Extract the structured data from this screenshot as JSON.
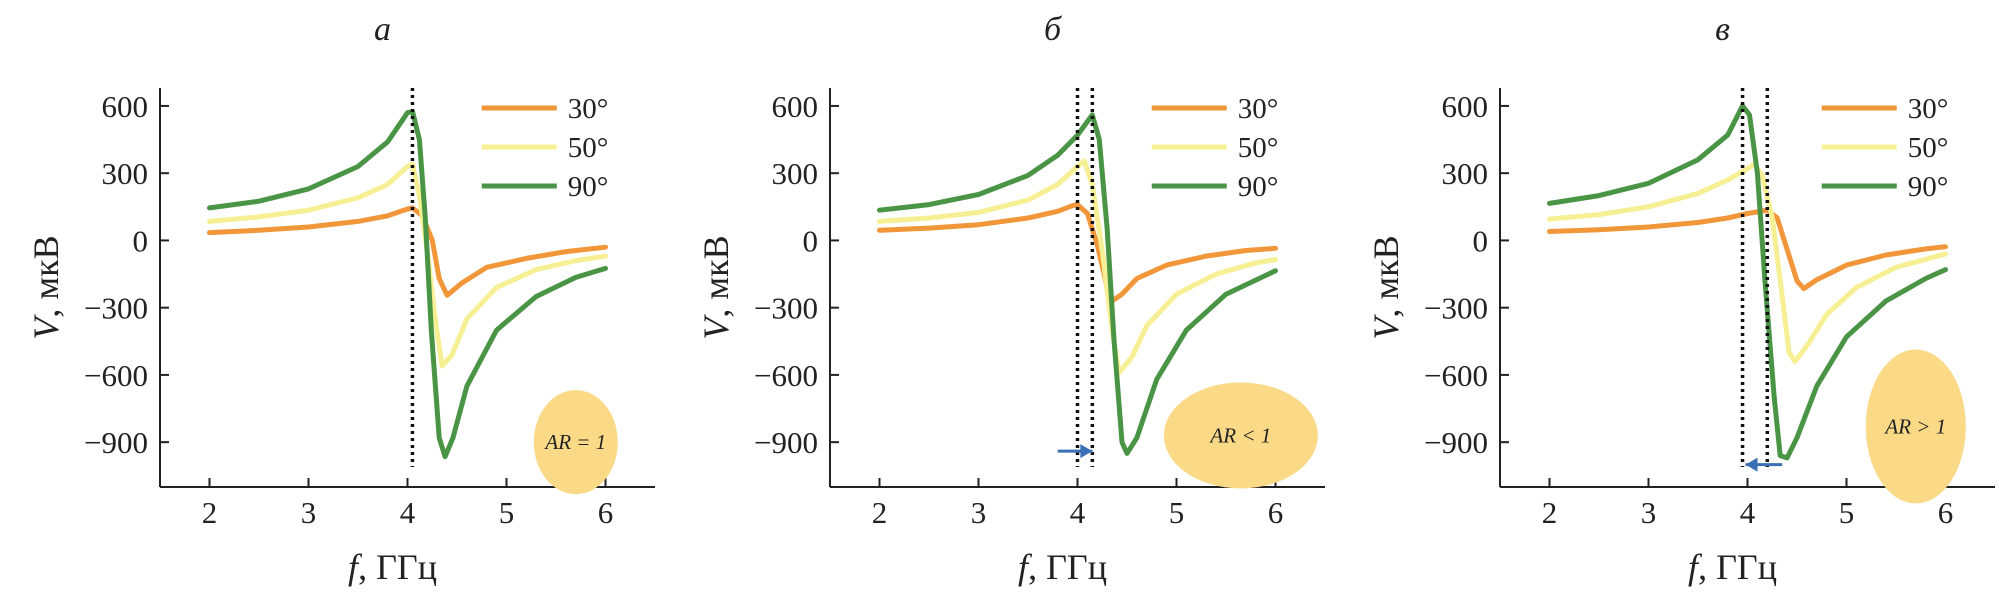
{
  "figure": {
    "colors": {
      "axis": "#222222",
      "arrow": "#3a6fb5",
      "shape": "#fad987",
      "marker": "#111111"
    }
  },
  "chart_data": [
    {
      "type": "line",
      "panel_letter": "а",
      "xlabel_var": "f",
      "xlabel_unit": ", ГГц",
      "ylabel_var": "V",
      "ylabel_unit": ", мкВ",
      "xlim": [
        1.5,
        6.5
      ],
      "ylim": [
        -1100,
        680
      ],
      "xticks": [
        2,
        3,
        4,
        5,
        6
      ],
      "yticks": [
        600,
        300,
        0,
        -300,
        -600,
        -900
      ],
      "grid": false,
      "legend_position": "top-right",
      "markers": [
        4.05
      ],
      "arrow": null,
      "shape": {
        "kind": "circle",
        "label": "AR = 1"
      },
      "series": [
        {
          "name": "30°",
          "color": "#f2963a",
          "points": [
            [
              2.0,
              35
            ],
            [
              2.5,
              45
            ],
            [
              3.0,
              60
            ],
            [
              3.5,
              85
            ],
            [
              3.8,
              110
            ],
            [
              4.0,
              140
            ],
            [
              4.05,
              145
            ],
            [
              4.15,
              110
            ],
            [
              4.25,
              0
            ],
            [
              4.32,
              -170
            ],
            [
              4.4,
              -245
            ],
            [
              4.55,
              -190
            ],
            [
              4.8,
              -120
            ],
            [
              5.2,
              -80
            ],
            [
              5.6,
              -50
            ],
            [
              6.0,
              -30
            ]
          ]
        },
        {
          "name": "50°",
          "color": "#f6ef93",
          "points": [
            [
              2.0,
              85
            ],
            [
              2.5,
              105
            ],
            [
              3.0,
              135
            ],
            [
              3.5,
              190
            ],
            [
              3.8,
              250
            ],
            [
              4.0,
              330
            ],
            [
              4.05,
              340
            ],
            [
              4.12,
              200
            ],
            [
              4.2,
              -50
            ],
            [
              4.28,
              -350
            ],
            [
              4.35,
              -560
            ],
            [
              4.45,
              -510
            ],
            [
              4.6,
              -350
            ],
            [
              4.9,
              -210
            ],
            [
              5.3,
              -130
            ],
            [
              5.7,
              -90
            ],
            [
              6.0,
              -70
            ]
          ]
        },
        {
          "name": "90°",
          "color": "#4a9445",
          "points": [
            [
              2.0,
              145
            ],
            [
              2.5,
              175
            ],
            [
              3.0,
              230
            ],
            [
              3.5,
              330
            ],
            [
              3.8,
              440
            ],
            [
              4.0,
              570
            ],
            [
              4.05,
              575
            ],
            [
              4.12,
              450
            ],
            [
              4.18,
              100
            ],
            [
              4.24,
              -400
            ],
            [
              4.32,
              -880
            ],
            [
              4.38,
              -965
            ],
            [
              4.46,
              -880
            ],
            [
              4.6,
              -650
            ],
            [
              4.9,
              -400
            ],
            [
              5.3,
              -250
            ],
            [
              5.7,
              -165
            ],
            [
              6.0,
              -125
            ]
          ]
        }
      ]
    },
    {
      "type": "line",
      "panel_letter": "б",
      "xlabel_var": "f",
      "xlabel_unit": ", ГГц",
      "ylabel_var": "V",
      "ylabel_unit": ", мкВ",
      "xlim": [
        1.5,
        6.5
      ],
      "ylim": [
        -1100,
        680
      ],
      "xticks": [
        2,
        3,
        4,
        5,
        6
      ],
      "yticks": [
        600,
        300,
        0,
        -300,
        -600,
        -900
      ],
      "grid": false,
      "legend_position": "top-right",
      "markers": [
        4.0,
        4.15
      ],
      "arrow": {
        "from": 3.8,
        "to": 4.15,
        "y": -940,
        "direction": "right"
      },
      "shape": {
        "kind": "wide-ellipse",
        "label": "AR < 1"
      },
      "series": [
        {
          "name": "30°",
          "color": "#f2963a",
          "points": [
            [
              2.0,
              45
            ],
            [
              2.5,
              55
            ],
            [
              3.0,
              70
            ],
            [
              3.5,
              100
            ],
            [
              3.8,
              130
            ],
            [
              3.95,
              155
            ],
            [
              4.0,
              160
            ],
            [
              4.1,
              120
            ],
            [
              4.2,
              -20
            ],
            [
              4.3,
              -210
            ],
            [
              4.35,
              -270
            ],
            [
              4.45,
              -240
            ],
            [
              4.6,
              -170
            ],
            [
              4.9,
              -110
            ],
            [
              5.3,
              -70
            ],
            [
              5.7,
              -45
            ],
            [
              6.0,
              -35
            ]
          ]
        },
        {
          "name": "50°",
          "color": "#f6ef93",
          "points": [
            [
              2.0,
              85
            ],
            [
              2.5,
              100
            ],
            [
              3.0,
              125
            ],
            [
              3.5,
              180
            ],
            [
              3.8,
              250
            ],
            [
              4.0,
              330
            ],
            [
              4.07,
              355
            ],
            [
              4.15,
              250
            ],
            [
              4.25,
              -50
            ],
            [
              4.35,
              -400
            ],
            [
              4.42,
              -590
            ],
            [
              4.55,
              -520
            ],
            [
              4.7,
              -380
            ],
            [
              5.0,
              -240
            ],
            [
              5.4,
              -150
            ],
            [
              5.8,
              -100
            ],
            [
              6.0,
              -85
            ]
          ]
        },
        {
          "name": "90°",
          "color": "#4a9445",
          "points": [
            [
              2.0,
              135
            ],
            [
              2.5,
              160
            ],
            [
              3.0,
              205
            ],
            [
              3.5,
              290
            ],
            [
              3.8,
              380
            ],
            [
              4.0,
              470
            ],
            [
              4.15,
              560
            ],
            [
              4.22,
              450
            ],
            [
              4.3,
              50
            ],
            [
              4.37,
              -450
            ],
            [
              4.45,
              -900
            ],
            [
              4.5,
              -950
            ],
            [
              4.6,
              -880
            ],
            [
              4.8,
              -620
            ],
            [
              5.1,
              -400
            ],
            [
              5.5,
              -240
            ],
            [
              6.0,
              -135
            ]
          ]
        }
      ]
    },
    {
      "type": "line",
      "panel_letter": "в",
      "xlabel_var": "f",
      "xlabel_unit": ", ГГц",
      "ylabel_var": "V",
      "ylabel_unit": ", мкВ",
      "xlim": [
        1.5,
        6.5
      ],
      "ylim": [
        -1100,
        680
      ],
      "xticks": [
        2,
        3,
        4,
        5,
        6
      ],
      "yticks": [
        600,
        300,
        0,
        -300,
        -600,
        -900
      ],
      "grid": false,
      "legend_position": "top-right",
      "markers": [
        3.95,
        4.2
      ],
      "arrow": {
        "from": 4.35,
        "to": 3.98,
        "y": -1000,
        "direction": "left"
      },
      "shape": {
        "kind": "tall-ellipse",
        "label": "AR > 1"
      },
      "series": [
        {
          "name": "30°",
          "color": "#f2963a",
          "points": [
            [
              2.0,
              40
            ],
            [
              2.5,
              48
            ],
            [
              3.0,
              60
            ],
            [
              3.5,
              80
            ],
            [
              3.8,
              100
            ],
            [
              4.0,
              120
            ],
            [
              4.2,
              135
            ],
            [
              4.3,
              100
            ],
            [
              4.4,
              -40
            ],
            [
              4.5,
              -180
            ],
            [
              4.57,
              -215
            ],
            [
              4.7,
              -175
            ],
            [
              5.0,
              -110
            ],
            [
              5.4,
              -65
            ],
            [
              5.8,
              -38
            ],
            [
              6.0,
              -28
            ]
          ]
        },
        {
          "name": "50°",
          "color": "#f6ef93",
          "points": [
            [
              2.0,
              95
            ],
            [
              2.5,
              115
            ],
            [
              3.0,
              150
            ],
            [
              3.5,
              210
            ],
            [
              3.8,
              270
            ],
            [
              4.0,
              320
            ],
            [
              4.07,
              340
            ],
            [
              4.15,
              290
            ],
            [
              4.25,
              100
            ],
            [
              4.35,
              -250
            ],
            [
              4.42,
              -500
            ],
            [
              4.48,
              -540
            ],
            [
              4.6,
              -470
            ],
            [
              4.8,
              -330
            ],
            [
              5.1,
              -210
            ],
            [
              5.5,
              -120
            ],
            [
              6.0,
              -60
            ]
          ]
        },
        {
          "name": "90°",
          "color": "#4a9445",
          "points": [
            [
              2.0,
              165
            ],
            [
              2.5,
              200
            ],
            [
              3.0,
              255
            ],
            [
              3.5,
              360
            ],
            [
              3.8,
              470
            ],
            [
              3.95,
              600
            ],
            [
              4.02,
              560
            ],
            [
              4.1,
              300
            ],
            [
              4.18,
              -200
            ],
            [
              4.27,
              -700
            ],
            [
              4.33,
              -960
            ],
            [
              4.4,
              -970
            ],
            [
              4.5,
              -880
            ],
            [
              4.7,
              -650
            ],
            [
              5.0,
              -430
            ],
            [
              5.4,
              -270
            ],
            [
              5.8,
              -170
            ],
            [
              6.0,
              -130
            ]
          ]
        }
      ]
    }
  ]
}
